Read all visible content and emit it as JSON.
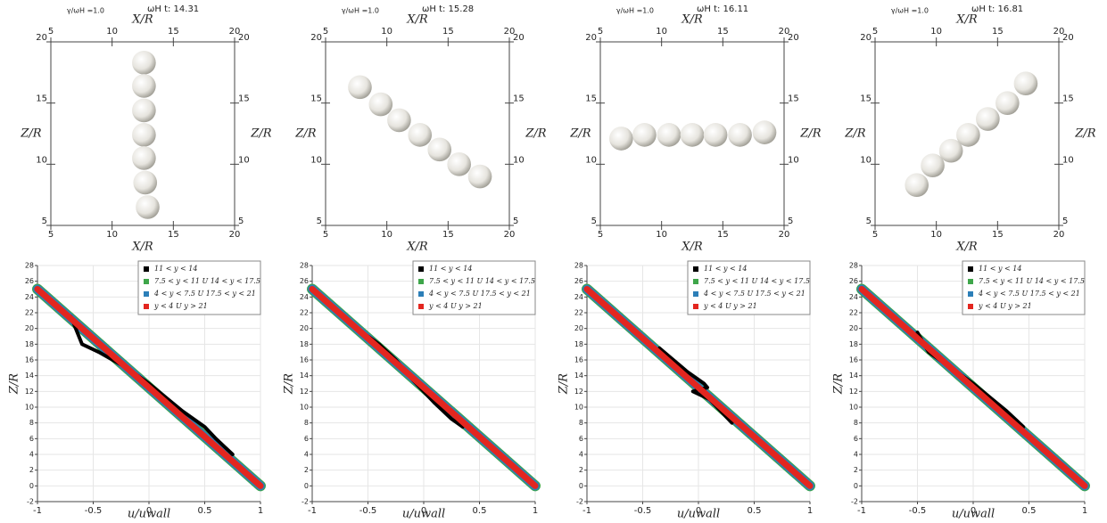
{
  "chart_data": [
    {
      "type": "scatter",
      "title_left": "γ/ωH =1.0",
      "title_right": "ωH t: 14.31",
      "xlabel": "X/R",
      "ylabel": "Z/R",
      "color": "#e6e4de",
      "x": [
        12.6,
        12.6,
        12.6,
        12.6,
        12.6,
        12.7,
        12.9
      ],
      "y": [
        18.3,
        16.4,
        14.4,
        12.4,
        10.5,
        8.5,
        6.5
      ],
      "xlim": [
        5,
        20
      ],
      "ylim": [
        5,
        20
      ],
      "xticks": [
        5,
        10,
        15,
        20
      ],
      "yticks": [
        5,
        10,
        15,
        20
      ]
    },
    {
      "type": "scatter",
      "title_left": "γ/ωH =1.0",
      "title_right": "ωH t: 15.28",
      "xlabel": "X/R",
      "ylabel": "Z/R",
      "color": "#e6e4de",
      "x": [
        7.8,
        9.5,
        11.0,
        12.7,
        14.3,
        15.9,
        17.6
      ],
      "y": [
        16.3,
        14.9,
        13.6,
        12.4,
        11.2,
        10.0,
        9.0
      ],
      "xlim": [
        5,
        20
      ],
      "ylim": [
        5,
        20
      ],
      "xticks": [
        5,
        10,
        15,
        20
      ],
      "yticks": [
        5,
        10,
        15,
        20
      ]
    },
    {
      "type": "scatter",
      "title_left": "γ/ωH =1.0",
      "title_right": "ωH t: 16.11",
      "xlabel": "X/R",
      "ylabel": "Z/R",
      "color": "#e6e4de",
      "x": [
        6.7,
        8.6,
        10.6,
        12.5,
        14.4,
        16.4,
        18.4
      ],
      "y": [
        12.1,
        12.4,
        12.4,
        12.4,
        12.4,
        12.4,
        12.6
      ],
      "xlim": [
        5,
        20
      ],
      "ylim": [
        5,
        20
      ],
      "xticks": [
        5,
        10,
        15,
        20
      ],
      "yticks": [
        5,
        10,
        15,
        20
      ]
    },
    {
      "type": "scatter",
      "title_left": "γ/ωH =1.0",
      "title_right": "ωH t: 16.81",
      "xlabel": "X/R",
      "ylabel": "Z/R",
      "color": "#e6e4de",
      "x": [
        8.4,
        9.7,
        11.2,
        12.6,
        14.2,
        15.8,
        17.3
      ],
      "y": [
        8.3,
        9.9,
        11.1,
        12.4,
        13.7,
        15.0,
        16.6
      ],
      "xlim": [
        5,
        20
      ],
      "ylim": [
        5,
        20
      ],
      "xticks": [
        5,
        10,
        15,
        20
      ],
      "yticks": [
        5,
        10,
        15,
        20
      ]
    },
    {
      "type": "line",
      "xlabel": "u/uwall",
      "ylabel": "Z/R",
      "grid": true,
      "legend": "upper right",
      "xlim": [
        -1,
        1
      ],
      "ylim": [
        -2,
        28
      ],
      "xticks": [
        -1,
        -0.5,
        0,
        0.5,
        1
      ],
      "yticks": [
        -2,
        0,
        2,
        4,
        6,
        8,
        10,
        12,
        14,
        16,
        18,
        20,
        22,
        24,
        26,
        28
      ],
      "series": [
        {
          "name": "11 < y < 14",
          "color": "#000000",
          "x": [
            -0.7,
            -0.6,
            -0.45,
            -0.2,
            0,
            0.3,
            0.5,
            0.6,
            0.75
          ],
          "y": [
            21.5,
            18,
            17,
            15,
            13,
            9.5,
            7.5,
            6,
            4
          ]
        },
        {
          "name": "7.5 < y < 11 U 14 < y < 17.5",
          "color": "#3ea64a",
          "x": [
            -1,
            1
          ],
          "y": [
            25,
            0
          ]
        },
        {
          "name": "4 < y < 7.5 U 17.5 < y < 21",
          "color": "#2c7fb8",
          "x": [
            -1,
            1
          ],
          "y": [
            25,
            0
          ]
        },
        {
          "name": "y < 4 U y > 21",
          "color": "#e3261f",
          "x": [
            -1,
            1
          ],
          "y": [
            25,
            0
          ]
        }
      ]
    },
    {
      "type": "line",
      "xlabel": "u/uwall",
      "ylabel": "Z/R",
      "grid": true,
      "legend": "upper right",
      "xlim": [
        -1,
        1
      ],
      "ylim": [
        -2,
        28
      ],
      "xticks": [
        -1,
        -0.5,
        0,
        0.5,
        1
      ],
      "yticks": [
        -2,
        0,
        2,
        4,
        6,
        8,
        10,
        12,
        14,
        16,
        18,
        20,
        22,
        24,
        26,
        28
      ],
      "series": [
        {
          "name": "11 < y < 14",
          "color": "#000000",
          "x": [
            -0.55,
            -0.4,
            -0.25,
            -0.1,
            0.1,
            0.25,
            0.35
          ],
          "y": [
            19.5,
            18,
            16,
            13.5,
            10.5,
            8.5,
            7.5
          ]
        },
        {
          "name": "7.5 < y < 11 U 14 < y < 17.5",
          "color": "#3ea64a",
          "x": [
            -1,
            1
          ],
          "y": [
            25,
            0
          ]
        },
        {
          "name": "4 < y < 7.5 U 17.5 < y < 21",
          "color": "#2c7fb8",
          "x": [
            -1,
            1
          ],
          "y": [
            25,
            0
          ]
        },
        {
          "name": "y < 4 U y > 21",
          "color": "#e3261f",
          "x": [
            -1,
            1
          ],
          "y": [
            25,
            0
          ]
        }
      ]
    },
    {
      "type": "line",
      "xlabel": "u/uwall",
      "ylabel": "Z/R",
      "grid": true,
      "legend": "upper right",
      "xlim": [
        -1,
        1
      ],
      "ylim": [
        -2,
        28
      ],
      "xticks": [
        -1,
        -0.5,
        0,
        0.5,
        1
      ],
      "yticks": [
        -2,
        0,
        2,
        4,
        6,
        8,
        10,
        12,
        14,
        16,
        18,
        20,
        22,
        24,
        26,
        28
      ],
      "series": [
        {
          "name": "11 < y < 14",
          "color": "#000000",
          "x": [
            -0.35,
            -0.1,
            0.05,
            0.08,
            -0.05,
            0.1,
            0.3
          ],
          "y": [
            17.5,
            14.5,
            13,
            12.5,
            12,
            11,
            8
          ]
        },
        {
          "name": "7.5 < y < 11 U 14 < y < 17.5",
          "color": "#3ea64a",
          "x": [
            -1,
            1
          ],
          "y": [
            25,
            0
          ]
        },
        {
          "name": "4 < y < 7.5 U 17.5 < y < 21",
          "color": "#2c7fb8",
          "x": [
            -1,
            1
          ],
          "y": [
            25,
            0
          ]
        },
        {
          "name": "y < 4 U y > 21",
          "color": "#e3261f",
          "x": [
            -1,
            1
          ],
          "y": [
            25,
            0
          ]
        }
      ]
    },
    {
      "type": "line",
      "xlabel": "u/uwall",
      "ylabel": "Z/R",
      "grid": true,
      "legend": "upper right",
      "xlim": [
        -1,
        1
      ],
      "ylim": [
        -2,
        28
      ],
      "xticks": [
        -1,
        -0.5,
        0,
        0.5,
        1
      ],
      "yticks": [
        -2,
        0,
        2,
        4,
        6,
        8,
        10,
        12,
        14,
        16,
        18,
        20,
        22,
        24,
        26,
        28
      ],
      "series": [
        {
          "name": "11 < y < 14",
          "color": "#000000",
          "x": [
            -0.5,
            -0.4,
            -0.3,
            0,
            0.3,
            0.45
          ],
          "y": [
            19.5,
            17,
            16,
            13,
            9.5,
            7.5
          ]
        },
        {
          "name": "7.5 < y < 11 U 14 < y < 17.5",
          "color": "#3ea64a",
          "x": [
            -1,
            1
          ],
          "y": [
            25,
            0
          ]
        },
        {
          "name": "4 < y < 7.5 U 17.5 < y < 21",
          "color": "#2c7fb8",
          "x": [
            -1,
            1
          ],
          "y": [
            25,
            0
          ]
        },
        {
          "name": "y < 4 U y > 21",
          "color": "#e3261f",
          "x": [
            -1,
            1
          ],
          "y": [
            25,
            0
          ]
        }
      ]
    }
  ]
}
